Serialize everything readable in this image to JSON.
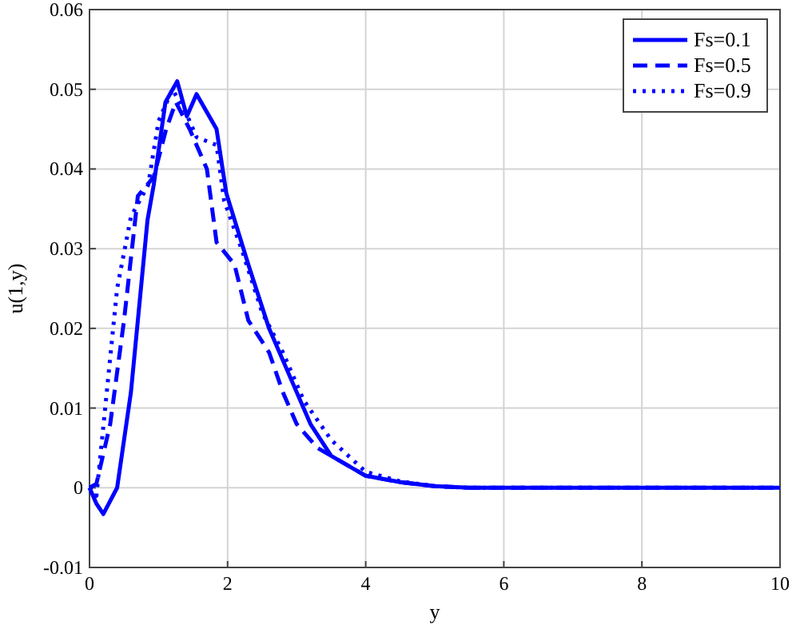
{
  "chart_data": {
    "type": "line",
    "xlabel": "y",
    "ylabel": "u(1,y)",
    "xlim": [
      0,
      10
    ],
    "ylim": [
      -0.01,
      0.06
    ],
    "xticks": [
      0,
      2,
      4,
      6,
      8,
      10
    ],
    "yticks": [
      -0.01,
      0,
      0.01,
      0.02,
      0.03,
      0.04,
      0.05,
      0.06
    ],
    "grid": true,
    "legend": "top right",
    "series": [
      {
        "name": "Fs=0.1",
        "color": "#0000ff",
        "line_style": "solid",
        "x": [
          0,
          0.1,
          0.2,
          0.4,
          0.6,
          0.7,
          0.84,
          0.93,
          1.1,
          1.27,
          1.41,
          1.55,
          1.84,
          1.98,
          2.3,
          2.6,
          3.0,
          3.2,
          3.5,
          4.0,
          4.5,
          5.0,
          5.5,
          10
        ],
        "values": [
          0,
          -0.002,
          -0.0033,
          0,
          0.012,
          0.021,
          0.0336,
          0.038,
          0.0484,
          0.051,
          0.0466,
          0.0494,
          0.045,
          0.037,
          0.028,
          0.02,
          0.012,
          0.008,
          0.004,
          0.0015,
          0.0007,
          0.0002,
          0,
          0
        ]
      },
      {
        "name": "Fs=0.5",
        "color": "#0000ff",
        "line_style": "dashed",
        "x": [
          0,
          0.1,
          0.3,
          0.5,
          0.7,
          0.93,
          1.11,
          1.25,
          1.45,
          1.7,
          1.84,
          2.1,
          2.3,
          2.6,
          2.8,
          3.0,
          3.3,
          3.6,
          4.0,
          4.5,
          5.0,
          5.5,
          10
        ],
        "values": [
          0,
          0.0005,
          0.008,
          0.021,
          0.0366,
          0.039,
          0.045,
          0.0484,
          0.045,
          0.04,
          0.0308,
          0.028,
          0.021,
          0.017,
          0.012,
          0.008,
          0.005,
          0.0035,
          0.0015,
          0.0007,
          0.0002,
          0,
          0
        ]
      },
      {
        "name": "Fs=0.9",
        "color": "#0000ff",
        "line_style": "dotted",
        "x": [
          0,
          0.1,
          0.25,
          0.4,
          0.6,
          0.85,
          1.0,
          1.2,
          1.4,
          1.55,
          1.84,
          1.95,
          2.2,
          2.5,
          2.8,
          3.1,
          3.5,
          4.0,
          4.5,
          5.0,
          5.5,
          10
        ],
        "values": [
          0,
          -0.001,
          0.012,
          0.025,
          0.034,
          0.038,
          0.046,
          0.05,
          0.047,
          0.044,
          0.043,
          0.036,
          0.03,
          0.022,
          0.017,
          0.011,
          0.006,
          0.002,
          0.0008,
          0.0002,
          0,
          0
        ]
      }
    ]
  }
}
